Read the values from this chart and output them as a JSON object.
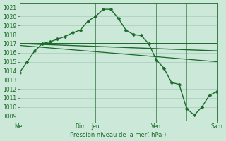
{
  "background_color": "#cce8d8",
  "grid_color": "#aaccbb",
  "line_color": "#1a6b2a",
  "xlabel_text": "Pression niveau de la mer( hPa )",
  "x_tick_labels": [
    "Mer",
    "Dim",
    "Jeu",
    "Ven",
    "Sam"
  ],
  "x_tick_positions": [
    0,
    8,
    10,
    18,
    26
  ],
  "ylim": [
    1008.5,
    1021.5
  ],
  "yticks": [
    1009,
    1010,
    1011,
    1012,
    1013,
    1014,
    1015,
    1016,
    1017,
    1018,
    1019,
    1020,
    1021
  ],
  "series1_x": [
    0,
    1,
    2,
    3,
    4,
    5,
    6,
    7,
    8,
    9,
    10,
    11,
    12,
    13,
    14,
    15,
    16,
    17,
    18,
    19,
    20,
    21,
    22,
    23,
    24,
    25,
    26
  ],
  "series1_y": [
    1013.8,
    1015.0,
    1016.2,
    1017.0,
    1017.2,
    1017.5,
    1017.8,
    1018.2,
    1018.5,
    1019.5,
    1020.0,
    1020.8,
    1020.8,
    1019.8,
    1018.5,
    1018.0,
    1017.9,
    1017.0,
    1015.2,
    1014.3,
    1012.7,
    1012.5,
    1009.8,
    1009.1,
    1010.0,
    1011.3,
    1011.7
  ],
  "series2_x": [
    0,
    26
  ],
  "series2_y": [
    1017.0,
    1017.0
  ],
  "series3_x": [
    0,
    26
  ],
  "series3_y": [
    1017.0,
    1016.2
  ],
  "series4_x": [
    0,
    26
  ],
  "series4_y": [
    1016.8,
    1015.0
  ],
  "vlines": [
    0,
    8,
    10,
    18,
    22,
    26
  ],
  "figsize": [
    3.2,
    2.0
  ],
  "dpi": 100,
  "tick_fontsize": 5.5,
  "xlabel_fontsize": 6.0
}
